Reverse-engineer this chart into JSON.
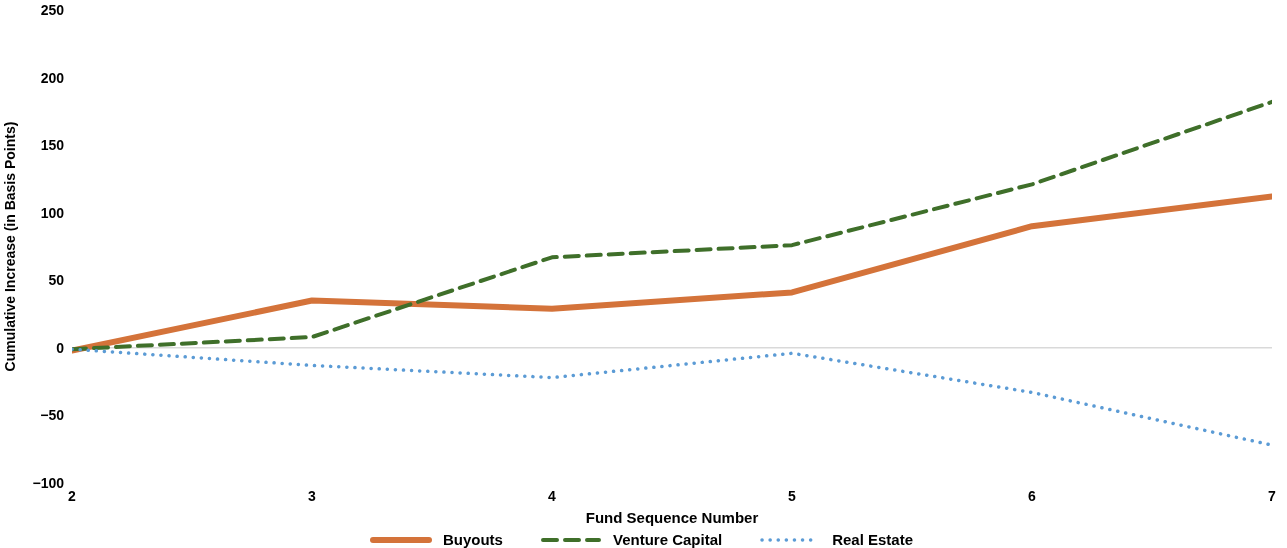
{
  "chart_data": {
    "type": "line",
    "xlabel": "Fund Sequence Number",
    "ylabel": "Cumulative  Increase (in Basis Points)",
    "x": [
      2,
      3,
      4,
      5,
      6,
      7
    ],
    "series": [
      {
        "name": "Buyouts",
        "color": "#d4733a",
        "line_style": "solid",
        "values": [
          -2,
          35,
          29,
          41,
          90,
          112
        ]
      },
      {
        "name": "Venture Capital",
        "color": "#3f6f2a",
        "line_style": "dashed",
        "values": [
          -1,
          8,
          67,
          76,
          121,
          182
        ]
      },
      {
        "name": "Real Estate",
        "color": "#5b9bd5",
        "line_style": "dotted",
        "values": [
          -1,
          -13,
          -22,
          -4,
          -33,
          -72
        ]
      }
    ],
    "xlim": [
      2,
      7
    ],
    "xticks": [
      2,
      3,
      4,
      5,
      6,
      7
    ],
    "ylim": [
      -100,
      250
    ],
    "yticks": [
      {
        "value": -100,
        "label": "−100"
      },
      {
        "value": -50,
        "label": "−50"
      },
      0,
      50,
      100,
      150,
      200,
      250
    ],
    "ref_lines": [
      {
        "axis": "y",
        "value": 0,
        "color": "#d9d9d9"
      }
    ],
    "grid": false,
    "legend": "bottom",
    "marker": "none"
  }
}
